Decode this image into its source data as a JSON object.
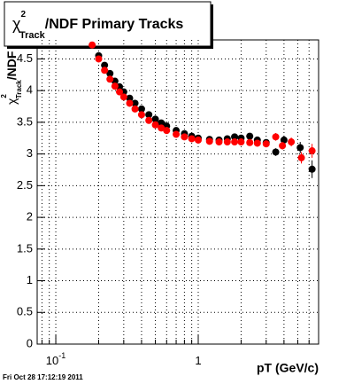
{
  "chart_data": {
    "type": "scatter",
    "title": {
      "symbol": "χ",
      "sup": "2",
      "sub": "Track",
      "rest": "/NDF  Primary Tracks"
    },
    "y_label": {
      "symbol": "χ",
      "sup": "2",
      "sub": "Track",
      "rest": "/NDF"
    },
    "x_label": "pT (GeV/c)",
    "timestamp": "Fri Oct 28 17:12:19 2011",
    "xlog": true,
    "grid": true,
    "xlim": [
      0.074,
      7
    ],
    "ylim": [
      0,
      4.8
    ],
    "xticks": [
      {
        "value": 0.1,
        "label": "10",
        "exponent": "-1"
      },
      1
    ],
    "xminor": [
      0.08,
      0.09,
      0.2,
      0.3,
      0.4,
      0.5,
      0.6,
      0.7,
      0.8,
      0.9,
      2,
      3,
      4,
      5,
      6,
      7
    ],
    "yticks": [
      0,
      0.5,
      1,
      1.5,
      2,
      2.5,
      3,
      3.5,
      4,
      4.5
    ],
    "series": [
      {
        "color": "#000000",
        "x": [
          0.2,
          0.22,
          0.24,
          0.26,
          0.28,
          0.3,
          0.33,
          0.36,
          0.4,
          0.45,
          0.5,
          0.55,
          0.6,
          0.7,
          0.8,
          0.9,
          1.0,
          1.2,
          1.4,
          1.6,
          1.8,
          2.0,
          2.3,
          2.6,
          3.0,
          3.5,
          4.0,
          5.2,
          6.3
        ],
        "values": [
          4.55,
          4.4,
          4.27,
          4.15,
          4.06,
          3.98,
          3.88,
          3.8,
          3.71,
          3.62,
          3.55,
          3.49,
          3.44,
          3.37,
          3.32,
          3.28,
          3.25,
          3.23,
          3.22,
          3.24,
          3.27,
          3.25,
          3.28,
          3.22,
          3.18,
          3.03,
          3.22,
          3.1,
          2.76
        ],
        "errors": [
          0.02,
          0.02,
          0.02,
          0.02,
          0.02,
          0.02,
          0.02,
          0.02,
          0.02,
          0.02,
          0.02,
          0.02,
          0.02,
          0.02,
          0.02,
          0.02,
          0.02,
          0.02,
          0.03,
          0.03,
          0.03,
          0.03,
          0.04,
          0.04,
          0.05,
          0.06,
          0.07,
          0.09,
          0.14
        ]
      },
      {
        "color": "#ff0000",
        "x": [
          0.18,
          0.2,
          0.22,
          0.24,
          0.26,
          0.28,
          0.3,
          0.33,
          0.36,
          0.4,
          0.45,
          0.5,
          0.55,
          0.6,
          0.7,
          0.8,
          0.9,
          1.0,
          1.2,
          1.4,
          1.6,
          1.8,
          2.0,
          2.3,
          2.6,
          3.0,
          3.5,
          3.9,
          4.5,
          5.3,
          6.3
        ],
        "values": [
          4.72,
          4.5,
          4.32,
          4.18,
          4.07,
          3.98,
          3.9,
          3.8,
          3.71,
          3.62,
          3.53,
          3.46,
          3.41,
          3.37,
          3.31,
          3.27,
          3.24,
          3.22,
          3.2,
          3.19,
          3.19,
          3.19,
          3.19,
          3.18,
          3.17,
          3.16,
          3.27,
          3.13,
          3.19,
          2.94,
          3.05
        ],
        "errors": [
          0.02,
          0.02,
          0.02,
          0.02,
          0.02,
          0.02,
          0.02,
          0.02,
          0.02,
          0.02,
          0.02,
          0.02,
          0.02,
          0.02,
          0.02,
          0.02,
          0.02,
          0.02,
          0.02,
          0.03,
          0.03,
          0.03,
          0.03,
          0.04,
          0.04,
          0.05,
          0.06,
          0.06,
          0.07,
          0.09,
          0.11
        ]
      }
    ]
  }
}
